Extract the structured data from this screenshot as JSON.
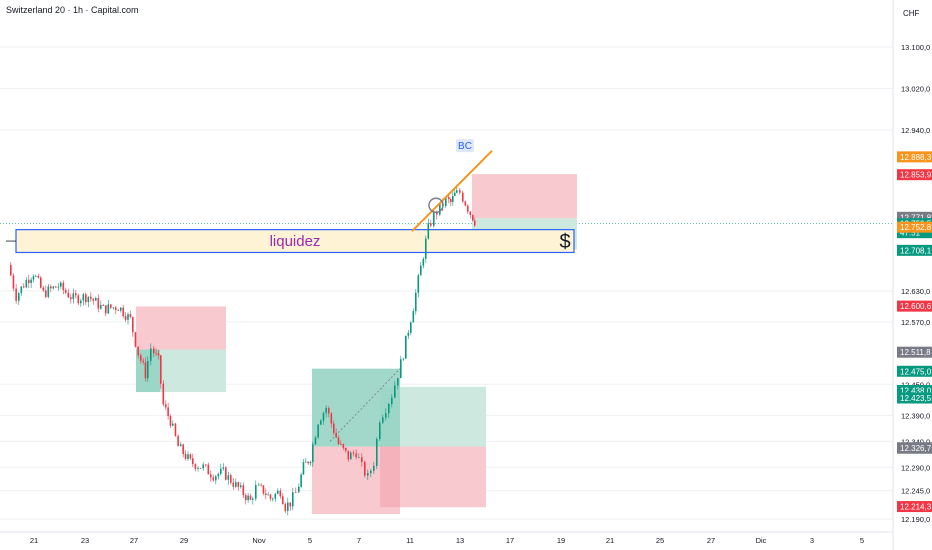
{
  "header": {
    "title": "Switzerland 20 · 1h · Capital.com",
    "currency": "CHF"
  },
  "colors": {
    "up": "#089981",
    "down": "#f23645",
    "orange": "#f7941d",
    "grey": "#787b86",
    "blue": "#2962ff",
    "zone_fill": "#fff3d6",
    "red_box": "#f8c9cf",
    "green_box": "#cce8df",
    "green_box_dark": "#8ed1bf"
  },
  "chart_data": {
    "type": "candlestick",
    "symbol": "Switzerland 20",
    "timeframe": "1h",
    "ylim": [
      12185,
      13180
    ],
    "y_ticks": [
      "13.100,0",
      "13.020,0",
      "12.940,0",
      "12.630,0",
      "12.570,0",
      "12.450,0",
      "12.390,0",
      "12.340,0",
      "12.290,0",
      "12.245,0",
      "12.190,0"
    ],
    "x_ticks": [
      {
        "label": "21",
        "x": 34
      },
      {
        "label": "23",
        "x": 85
      },
      {
        "label": "27",
        "x": 134
      },
      {
        "label": "29",
        "x": 184
      },
      {
        "label": "Nov",
        "x": 259
      },
      {
        "label": "5",
        "x": 310
      },
      {
        "label": "7",
        "x": 359
      },
      {
        "label": "11",
        "x": 410
      },
      {
        "label": "13",
        "x": 460
      },
      {
        "label": "17",
        "x": 510
      },
      {
        "label": "19",
        "x": 561
      },
      {
        "label": "21",
        "x": 610
      },
      {
        "label": "25",
        "x": 660
      },
      {
        "label": "27",
        "x": 711
      },
      {
        "label": "Dic",
        "x": 761
      },
      {
        "label": "3",
        "x": 812
      },
      {
        "label": "5",
        "x": 862
      }
    ],
    "price_badges": [
      {
        "label": "12.888,3",
        "value": 12888.3,
        "color": "#f7941d"
      },
      {
        "label": "12.853,9",
        "value": 12853.9,
        "color": "#f23645"
      },
      {
        "label": "12.771,8",
        "value": 12771.8,
        "color": "#787b86"
      },
      {
        "label": "12.759,5",
        "value": 12759.5,
        "color": "#089981",
        "sub": "47:51"
      },
      {
        "label": "12.752,8",
        "value": 12752.8,
        "color": "#f7941d"
      },
      {
        "label": "12.708,1",
        "value": 12708.1,
        "color": "#089981"
      },
      {
        "label": "12.600,6",
        "value": 12600.6,
        "color": "#f23645"
      },
      {
        "label": "12.511,8",
        "value": 12511.8,
        "color": "#787b86"
      },
      {
        "label": "12.475,0",
        "value": 12475.0,
        "color": "#089981"
      },
      {
        "label": "12.438,0",
        "value": 12438.0,
        "color": "#089981"
      },
      {
        "label": "12.423,5",
        "value": 12423.5,
        "color": "#089981"
      },
      {
        "label": "12.327,7",
        "value": 12327.7,
        "color": "#787b86"
      },
      {
        "label": "12.326,7",
        "value": 12326.7,
        "color": "#787b86"
      },
      {
        "label": "12.214,3",
        "value": 12214.3,
        "color": "#f23645"
      }
    ],
    "price_path": [
      [
        10,
        12680
      ],
      [
        18,
        12620
      ],
      [
        28,
        12650
      ],
      [
        35,
        12665
      ],
      [
        45,
        12625
      ],
      [
        60,
        12640
      ],
      [
        75,
        12615
      ],
      [
        90,
        12620
      ],
      [
        105,
        12595
      ],
      [
        120,
        12600
      ],
      [
        132,
        12575
      ],
      [
        140,
        12510
      ],
      [
        147,
        12470
      ],
      [
        153,
        12520
      ],
      [
        160,
        12495
      ],
      [
        165,
        12410
      ],
      [
        172,
        12380
      ],
      [
        180,
        12330
      ],
      [
        192,
        12300
      ],
      [
        205,
        12290
      ],
      [
        215,
        12275
      ],
      [
        225,
        12280
      ],
      [
        235,
        12260
      ],
      [
        245,
        12240
      ],
      [
        252,
        12225
      ],
      [
        258,
        12250
      ],
      [
        265,
        12245
      ],
      [
        272,
        12230
      ],
      [
        282,
        12245
      ],
      [
        287,
        12215
      ],
      [
        292,
        12222
      ],
      [
        298,
        12240
      ],
      [
        305,
        12290
      ],
      [
        312,
        12310
      ],
      [
        320,
        12380
      ],
      [
        328,
        12405
      ],
      [
        333,
        12375
      ],
      [
        340,
        12335
      ],
      [
        350,
        12310
      ],
      [
        358,
        12320
      ],
      [
        364,
        12290
      ],
      [
        370,
        12270
      ],
      [
        376,
        12300
      ],
      [
        382,
        12385
      ],
      [
        388,
        12405
      ],
      [
        394,
        12430
      ],
      [
        400,
        12470
      ],
      [
        405,
        12510
      ],
      [
        410,
        12555
      ],
      [
        415,
        12600
      ],
      [
        420,
        12650
      ],
      [
        425,
        12700
      ],
      [
        430,
        12750
      ],
      [
        436,
        12775
      ],
      [
        442,
        12790
      ],
      [
        448,
        12805
      ],
      [
        452,
        12800
      ],
      [
        456,
        12815
      ],
      [
        462,
        12820
      ],
      [
        467,
        12800
      ],
      [
        472,
        12780
      ],
      [
        476,
        12765
      ]
    ],
    "annotations": {
      "zone_label": "liquidez",
      "zone_symbol": "$",
      "zone_top": 12748,
      "zone_bottom": 12704,
      "wedge_label": "BC"
    }
  }
}
